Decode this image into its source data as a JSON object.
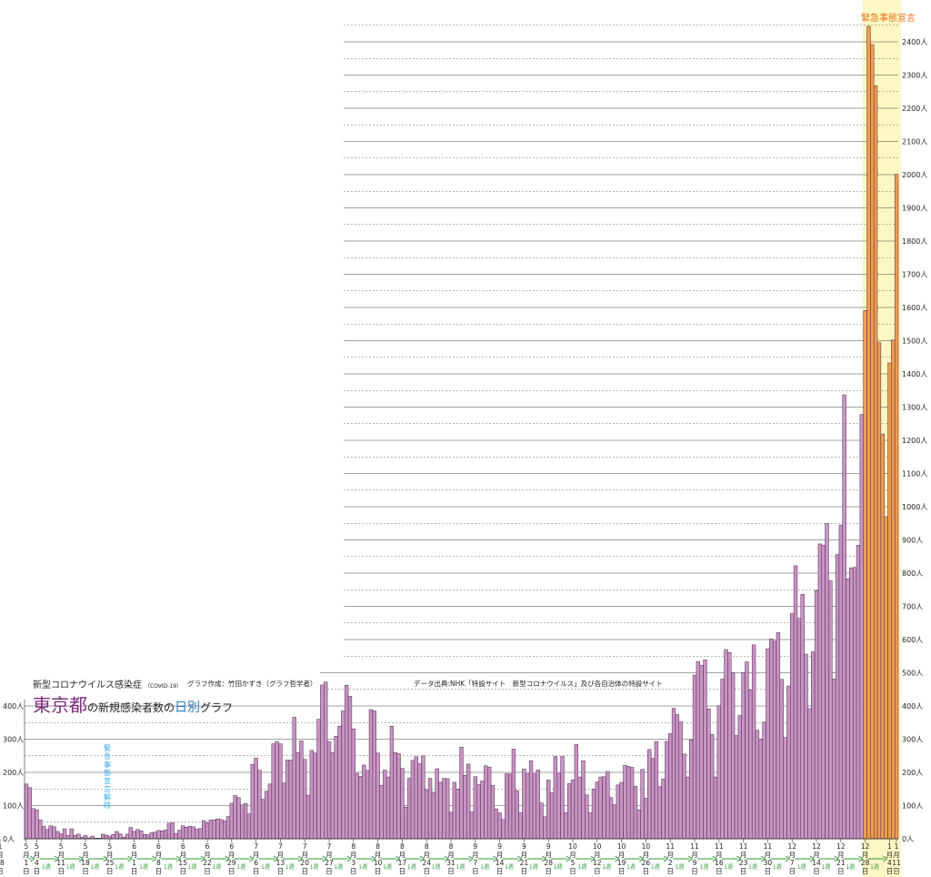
{
  "header": {
    "title_small": "新型コロナウイルス感染症",
    "title_small_sub": "（COVID-19）",
    "credit": "グラフ作成：竹田かずき（グラフ哲学者）",
    "title_big_place": "東京都",
    "title_big_mid": "の新規感染者数の",
    "title_big_highlight": "日別",
    "title_big_end": "グラフ",
    "source": "データ出典:NHK「特設サイト　新型コロナウイルス」及び各自治体の特設サイト"
  },
  "annotations": {
    "emergency_declaration": "緊急事態宣言",
    "emergency_lifted": "緊急事態宣言解除",
    "week_marker": "1週"
  },
  "colors": {
    "bar": "#c993c4",
    "bar_stroke": "#4a2a48",
    "emergency_bar": "#ef9d4f",
    "emergency_band": "#fdf7c4",
    "emergency_text": "#e8721a",
    "lift_text": "#36a9e0",
    "arrow": "#2e9a3a"
  },
  "chart_data": {
    "type": "bar",
    "ylabel": "",
    "ylim": [
      0,
      2500
    ],
    "y_ticks": [
      "0人",
      "100人",
      "200人",
      "300人",
      "400人",
      "500人",
      "600人",
      "700人",
      "800人",
      "900人",
      "1000人",
      "1100人",
      "1200人",
      "1300人",
      "1400人",
      "1500人",
      "1600人",
      "1700人",
      "1800人",
      "1900人",
      "2000人",
      "2100人",
      "2200人",
      "2300人",
      "2400人"
    ],
    "x_tick_labels": [
      {
        "month": "5",
        "day": "1"
      },
      {
        "month": "5",
        "day": "4"
      },
      {
        "month": "5",
        "day": "11"
      },
      {
        "month": "5",
        "day": "18"
      },
      {
        "month": "5",
        "day": "25"
      },
      {
        "month": "6",
        "day": "1"
      },
      {
        "month": "6",
        "day": "8"
      },
      {
        "month": "6",
        "day": "15"
      },
      {
        "month": "6",
        "day": "22"
      },
      {
        "month": "6",
        "day": "29"
      },
      {
        "month": "7",
        "day": "6"
      },
      {
        "month": "7",
        "day": "13"
      },
      {
        "month": "7",
        "day": "20"
      },
      {
        "month": "7",
        "day": "27"
      },
      {
        "month": "8",
        "day": "3"
      },
      {
        "month": "8",
        "day": "10"
      },
      {
        "month": "8",
        "day": "17"
      },
      {
        "month": "8",
        "day": "24"
      },
      {
        "month": "8",
        "day": "31"
      },
      {
        "month": "9",
        "day": "7"
      },
      {
        "month": "9",
        "day": "14"
      },
      {
        "month": "9",
        "day": "21"
      },
      {
        "month": "9",
        "day": "28"
      },
      {
        "month": "10",
        "day": "5"
      },
      {
        "month": "10",
        "day": "12"
      },
      {
        "month": "10",
        "day": "19"
      },
      {
        "month": "10",
        "day": "26"
      },
      {
        "month": "11",
        "day": "2"
      },
      {
        "month": "11",
        "day": "9"
      },
      {
        "month": "11",
        "day": "16"
      },
      {
        "month": "11",
        "day": "23"
      },
      {
        "month": "11",
        "day": "30"
      },
      {
        "month": "12",
        "day": "7"
      },
      {
        "month": "12",
        "day": "14"
      },
      {
        "month": "12",
        "day": "21"
      },
      {
        "month": "12",
        "day": "28"
      },
      {
        "month": "1",
        "day": "4"
      },
      {
        "month": "1",
        "day": "11"
      },
      {
        "month": "1",
        "day": "18"
      }
    ],
    "series": [
      {
        "values": [
          165,
          154,
          91,
          87,
          57,
          38,
          28,
          39,
          36,
          22,
          15,
          30,
          10,
          30,
          10,
          14,
          5,
          10,
          3,
          8,
          2,
          2,
          14,
          11,
          8,
          13,
          22,
          15,
          5,
          14,
          34,
          22,
          28,
          24,
          13,
          12,
          18,
          20,
          25,
          24,
          27,
          47,
          48,
          16,
          26,
          39,
          35,
          38,
          36,
          29,
          31,
          55,
          48,
          57,
          57,
          60,
          58,
          54,
          67,
          107,
          130,
          124,
          102,
          106,
          75,
          224,
          243,
          206,
          119,
          143,
          165,
          286,
          293,
          286,
          168,
          237,
          237,
          366,
          260,
          295,
          239,
          131,
          266,
          258,
          360,
          463,
          472,
          292,
          260,
          309,
          339,
          385,
          462,
          429,
          331,
          197,
          188,
          222,
          206,
          389,
          385,
          258,
          161,
          207,
          186,
          339,
          260,
          256,
          212,
          95,
          182,
          236,
          247,
          226,
          250,
          148,
          182,
          140,
          211,
          170,
          182,
          181,
          80,
          170,
          149,
          276,
          191,
          225,
          81,
          187,
          163,
          174,
          220,
          216,
          161,
          90,
          78,
          58,
          196,
          195,
          270,
          145,
          79,
          210,
          196,
          235,
          195,
          207,
          108,
          66,
          177,
          138,
          248,
          197,
          248,
          79,
          166,
          177,
          284,
          186,
          235,
          132,
          78,
          150,
          171,
          186,
          187,
          203,
          124,
          102,
          162,
          170,
          221,
          218,
          215,
          158,
          87,
          209,
          122,
          269,
          242,
          293,
          157,
          180,
          293,
          317,
          393,
          374,
          352,
          255,
          186,
          298,
          493,
          534,
          522,
          539,
          391,
          314,
          186,
          401,
          481,
          570,
          561,
          500,
          311,
          371,
          500,
          533,
          449,
          584,
          327,
          299,
          352,
          572,
          602,
          595,
          621,
          480,
          305,
          460,
          678,
          822,
          664,
          736,
          556,
          392,
          563,
          748,
          888,
          884,
          949,
          777,
          481,
          856,
          944,
          1337,
          783,
          816,
          817,
          884,
          1278,
          1591,
          2447,
          2392,
          2268,
          1494,
          1219,
          970,
          1433,
          1502,
          2001
        ]
      }
    ],
    "emergency_start_index": 241,
    "emergency_annotation_index": 241,
    "lift_annotation_index": 24,
    "x_range": [
      "5月1日",
      "1月18日"
    ]
  }
}
